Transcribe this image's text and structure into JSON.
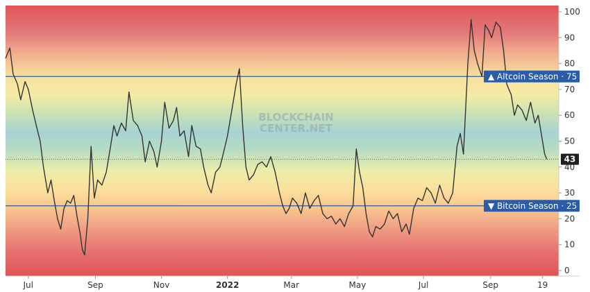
{
  "chart_data": {
    "type": "line",
    "title": "",
    "xlabel": "",
    "ylabel": "",
    "ylim": [
      0,
      100
    ],
    "y_ticks": [
      0,
      10,
      20,
      30,
      40,
      50,
      60,
      70,
      80,
      90,
      100
    ],
    "x_ticks": [
      {
        "label": "Jul",
        "date": "2021-07-01",
        "bold": false
      },
      {
        "label": "Sep",
        "date": "2021-09-01",
        "bold": false
      },
      {
        "label": "Nov",
        "date": "2021-11-01",
        "bold": false
      },
      {
        "label": "2022",
        "date": "2022-01-01",
        "bold": true
      },
      {
        "label": "Mar",
        "date": "2022-03-01",
        "bold": false
      },
      {
        "label": "May",
        "date": "2022-05-01",
        "bold": false
      },
      {
        "label": "Jul",
        "date": "2022-07-01",
        "bold": false
      },
      {
        "label": "Sep",
        "date": "2022-09-01",
        "bold": false
      },
      {
        "label": "19",
        "date": "2022-10-19",
        "bold": false
      }
    ],
    "x_range": [
      "2021-06-10",
      "2022-11-03"
    ],
    "grid": false,
    "legend": "none",
    "watermark": [
      "BLOCKCHAIN",
      "CENTER.NET"
    ],
    "levels": [
      {
        "label": "▲ Altcoin Season · 75",
        "value": 75
      },
      {
        "label": "▼ Bitcoin Season · 25",
        "value": 25
      }
    ],
    "current": {
      "label": "43",
      "value": 43
    },
    "series": [
      {
        "color": "#333333",
        "points": [
          [
            "2021-06-10",
            82
          ],
          [
            "2021-06-14",
            86
          ],
          [
            "2021-06-17",
            76
          ],
          [
            "2021-06-21",
            72
          ],
          [
            "2021-06-24",
            66
          ],
          [
            "2021-06-28",
            73
          ],
          [
            "2021-07-01",
            70
          ],
          [
            "2021-07-05",
            62
          ],
          [
            "2021-07-09",
            55
          ],
          [
            "2021-07-12",
            50
          ],
          [
            "2021-07-15",
            40
          ],
          [
            "2021-07-19",
            30
          ],
          [
            "2021-07-22",
            35
          ],
          [
            "2021-07-25",
            27
          ],
          [
            "2021-07-28",
            20
          ],
          [
            "2021-07-31",
            16
          ],
          [
            "2021-08-03",
            24
          ],
          [
            "2021-08-06",
            27
          ],
          [
            "2021-08-09",
            26
          ],
          [
            "2021-08-12",
            29
          ],
          [
            "2021-08-15",
            21
          ],
          [
            "2021-08-18",
            14
          ],
          [
            "2021-08-20",
            8
          ],
          [
            "2021-08-22",
            6
          ],
          [
            "2021-08-25",
            20
          ],
          [
            "2021-08-28",
            48
          ],
          [
            "2021-08-31",
            28
          ],
          [
            "2021-09-03",
            35
          ],
          [
            "2021-09-07",
            33
          ],
          [
            "2021-09-11",
            38
          ],
          [
            "2021-09-15",
            48
          ],
          [
            "2021-09-18",
            56
          ],
          [
            "2021-09-21",
            52
          ],
          [
            "2021-09-25",
            57
          ],
          [
            "2021-09-29",
            54
          ],
          [
            "2021-10-02",
            69
          ],
          [
            "2021-10-06",
            58
          ],
          [
            "2021-10-10",
            56
          ],
          [
            "2021-10-14",
            52
          ],
          [
            "2021-10-17",
            42
          ],
          [
            "2021-10-21",
            50
          ],
          [
            "2021-10-25",
            46
          ],
          [
            "2021-10-28",
            40
          ],
          [
            "2021-11-01",
            50
          ],
          [
            "2021-11-04",
            65
          ],
          [
            "2021-11-08",
            55
          ],
          [
            "2021-11-12",
            58
          ],
          [
            "2021-11-15",
            63
          ],
          [
            "2021-11-18",
            52
          ],
          [
            "2021-11-22",
            54
          ],
          [
            "2021-11-26",
            44
          ],
          [
            "2021-11-29",
            56
          ],
          [
            "2021-12-03",
            48
          ],
          [
            "2021-12-07",
            47
          ],
          [
            "2021-12-10",
            40
          ],
          [
            "2021-12-14",
            33
          ],
          [
            "2021-12-17",
            30
          ],
          [
            "2021-12-21",
            38
          ],
          [
            "2021-12-25",
            40
          ],
          [
            "2021-12-28",
            45
          ],
          [
            "2022-01-01",
            52
          ],
          [
            "2022-01-05",
            62
          ],
          [
            "2022-01-09",
            72
          ],
          [
            "2022-01-12",
            78
          ],
          [
            "2022-01-15",
            56
          ],
          [
            "2022-01-18",
            40
          ],
          [
            "2022-01-21",
            35
          ],
          [
            "2022-01-25",
            37
          ],
          [
            "2022-01-29",
            41
          ],
          [
            "2022-02-02",
            42
          ],
          [
            "2022-02-06",
            40
          ],
          [
            "2022-02-10",
            44
          ],
          [
            "2022-02-14",
            38
          ],
          [
            "2022-02-18",
            30
          ],
          [
            "2022-02-21",
            25
          ],
          [
            "2022-02-24",
            22
          ],
          [
            "2022-02-27",
            24
          ],
          [
            "2022-03-02",
            28
          ],
          [
            "2022-03-06",
            26
          ],
          [
            "2022-03-10",
            22
          ],
          [
            "2022-03-14",
            30
          ],
          [
            "2022-03-18",
            24
          ],
          [
            "2022-03-22",
            27
          ],
          [
            "2022-03-26",
            29
          ],
          [
            "2022-03-30",
            22
          ],
          [
            "2022-04-03",
            20
          ],
          [
            "2022-04-07",
            21
          ],
          [
            "2022-04-11",
            18
          ],
          [
            "2022-04-15",
            20
          ],
          [
            "2022-04-19",
            17
          ],
          [
            "2022-04-23",
            22
          ],
          [
            "2022-04-27",
            25
          ],
          [
            "2022-04-30",
            47
          ],
          [
            "2022-05-03",
            38
          ],
          [
            "2022-05-06",
            32
          ],
          [
            "2022-05-09",
            22
          ],
          [
            "2022-05-12",
            15
          ],
          [
            "2022-05-15",
            13
          ],
          [
            "2022-05-18",
            17
          ],
          [
            "2022-05-22",
            16
          ],
          [
            "2022-05-26",
            18
          ],
          [
            "2022-05-30",
            23
          ],
          [
            "2022-06-03",
            20
          ],
          [
            "2022-06-07",
            22
          ],
          [
            "2022-06-11",
            15
          ],
          [
            "2022-06-15",
            18
          ],
          [
            "2022-06-18",
            14
          ],
          [
            "2022-06-22",
            24
          ],
          [
            "2022-06-26",
            28
          ],
          [
            "2022-06-30",
            27
          ],
          [
            "2022-07-04",
            32
          ],
          [
            "2022-07-08",
            30
          ],
          [
            "2022-07-12",
            26
          ],
          [
            "2022-07-16",
            33
          ],
          [
            "2022-07-20",
            28
          ],
          [
            "2022-07-24",
            26
          ],
          [
            "2022-07-28",
            30
          ],
          [
            "2022-08-01",
            48
          ],
          [
            "2022-08-04",
            53
          ],
          [
            "2022-08-07",
            45
          ],
          [
            "2022-08-11",
            80
          ],
          [
            "2022-08-14",
            97
          ],
          [
            "2022-08-17",
            85
          ],
          [
            "2022-08-20",
            80
          ],
          [
            "2022-08-24",
            75
          ],
          [
            "2022-08-27",
            95
          ],
          [
            "2022-08-30",
            93
          ],
          [
            "2022-09-02",
            90
          ],
          [
            "2022-09-06",
            96
          ],
          [
            "2022-09-10",
            94
          ],
          [
            "2022-09-13",
            85
          ],
          [
            "2022-09-16",
            72
          ],
          [
            "2022-09-20",
            68
          ],
          [
            "2022-09-23",
            60
          ],
          [
            "2022-09-26",
            64
          ],
          [
            "2022-09-30",
            62
          ],
          [
            "2022-10-04",
            58
          ],
          [
            "2022-10-08",
            65
          ],
          [
            "2022-10-12",
            57
          ],
          [
            "2022-10-15",
            60
          ],
          [
            "2022-10-19",
            50
          ],
          [
            "2022-10-21",
            45
          ],
          [
            "2022-10-23",
            43
          ]
        ]
      }
    ]
  }
}
